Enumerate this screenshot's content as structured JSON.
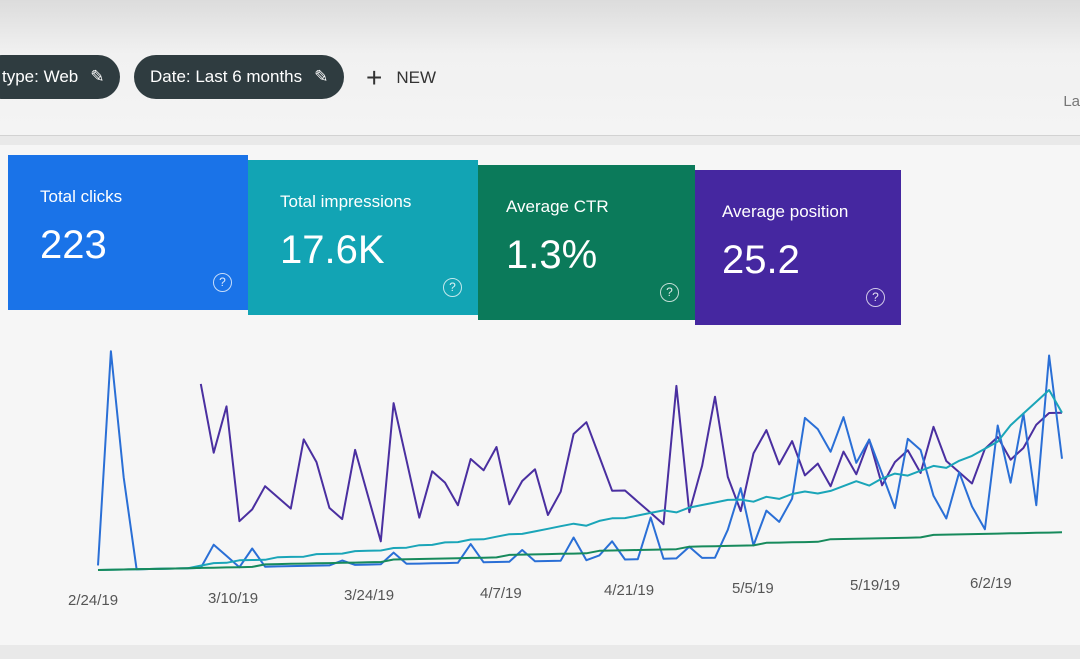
{
  "filters": [
    {
      "label": "type: Web",
      "icon": "pencil-icon"
    },
    {
      "label": "Date: Last 6 months",
      "icon": "pencil-icon"
    }
  ],
  "new_button": {
    "label": "NEW",
    "icon": "plus-icon"
  },
  "truncated_right_text": "La",
  "metrics": [
    {
      "label": "Total clicks",
      "value": "223",
      "color": "#1a73e8"
    },
    {
      "label": "Total impressions",
      "value": "17.6K",
      "color": "#12a4b4"
    },
    {
      "label": "Average CTR",
      "value": "1.3%",
      "color": "#0b7a5a"
    },
    {
      "label": "Average position",
      "value": "25.2",
      "color": "#4527a0"
    }
  ],
  "chart_data": {
    "type": "line",
    "x_ticks": [
      "2/24/19",
      "3/10/19",
      "3/24/19",
      "4/7/19",
      "4/21/19",
      "5/5/19",
      "5/19/19",
      "6/2/19"
    ],
    "grid": false,
    "series": [
      {
        "color": "#4a2fa0",
        "values": [
          null,
          null,
          null,
          null,
          null,
          null,
          null,
          null,
          80,
          50,
          70,
          20,
          25,
          35,
          30,
          25,
          55,
          45,
          25,
          20,
          50,
          30,
          10,
          70,
          45,
          20,
          40,
          35,
          25,
          45,
          40,
          50,
          25,
          35,
          40,
          20,
          30,
          55,
          60,
          45,
          30,
          30,
          25,
          20,
          15,
          75,
          20,
          40,
          70,
          35,
          20,
          45,
          55,
          40,
          50,
          35,
          40,
          30,
          45,
          35,
          50,
          30,
          40,
          45,
          35,
          55,
          40,
          35,
          30,
          45,
          50,
          40,
          45,
          55,
          60,
          60
        ]
      },
      {
        "color": "#2a6fd6",
        "values": [
          2,
          95,
          40,
          0,
          0,
          0,
          0,
          0,
          0,
          10,
          5,
          0,
          8,
          0,
          0,
          0,
          0,
          0,
          0,
          2,
          0,
          0,
          0,
          5,
          0,
          0,
          0,
          0,
          0,
          8,
          0,
          0,
          0,
          5,
          0,
          0,
          0,
          10,
          0,
          2,
          8,
          0,
          0,
          18,
          0,
          0,
          5,
          0,
          0,
          12,
          30,
          5,
          20,
          15,
          25,
          60,
          55,
          45,
          60,
          40,
          50,
          35,
          20,
          50,
          45,
          25,
          15,
          35,
          20,
          10,
          55,
          30,
          60,
          20,
          85,
          40
        ]
      },
      {
        "color": "#1aa5b8",
        "values": [
          0,
          0,
          0,
          0,
          0,
          0,
          0,
          0,
          1,
          2,
          2,
          3,
          3,
          3,
          4,
          4,
          4,
          5,
          5,
          5,
          6,
          6,
          6,
          7,
          7,
          8,
          8,
          9,
          9,
          10,
          10,
          11,
          12,
          12,
          13,
          14,
          15,
          16,
          15,
          17,
          18,
          18,
          19,
          20,
          21,
          20,
          22,
          23,
          24,
          25,
          25,
          24,
          26,
          25,
          27,
          28,
          27,
          28,
          30,
          32,
          30,
          33,
          35,
          34,
          36,
          38,
          37,
          40,
          42,
          45,
          48,
          55,
          60,
          65,
          70,
          60
        ]
      },
      {
        "color": "#178a5c",
        "values": [
          0,
          0,
          0,
          0,
          0,
          0,
          0,
          0,
          0,
          0,
          0,
          0,
          0,
          1,
          1,
          1,
          1,
          1,
          1,
          1,
          1,
          1,
          1,
          2,
          2,
          2,
          2,
          2,
          2,
          2,
          2,
          2,
          3,
          3,
          3,
          3,
          3,
          3,
          3,
          4,
          4,
          4,
          4,
          4,
          4,
          4,
          5,
          5,
          5,
          5,
          5,
          5,
          6,
          6,
          6,
          6,
          6,
          7,
          7,
          7,
          7,
          7,
          7,
          7,
          7,
          8,
          8,
          8,
          8,
          8,
          8,
          8,
          8,
          8,
          8,
          8
        ]
      }
    ]
  }
}
